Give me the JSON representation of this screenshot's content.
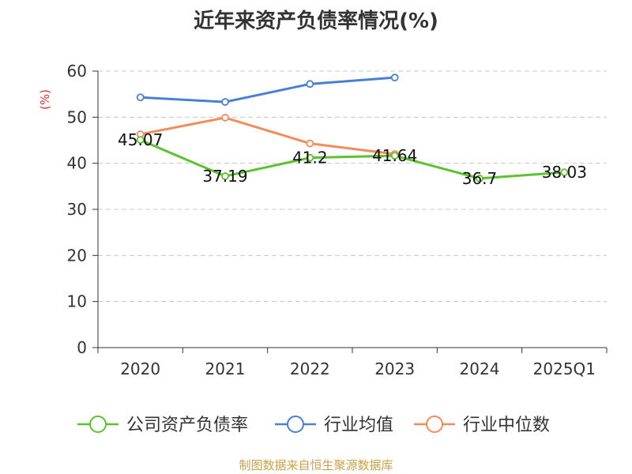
{
  "chart_data": {
    "type": "line",
    "title": "近年来资产负债率情况(%)",
    "ylabel": "(%)",
    "xlabel": "",
    "categories": [
      "2020",
      "2021",
      "2022",
      "2023",
      "2024",
      "2025Q1"
    ],
    "ylim": [
      0,
      60
    ],
    "yticks": [
      0,
      10,
      20,
      30,
      40,
      50,
      60
    ],
    "grid": true,
    "legend_position": "bottom",
    "series": [
      {
        "name": "公司资产负债率",
        "color": "#5cc22e",
        "values": [
          45.07,
          37.19,
          41.2,
          41.64,
          36.7,
          38.03
        ],
        "data_labels": [
          "45.07",
          "37.19",
          "41.2",
          "41.64",
          "36.7",
          "38.03"
        ]
      },
      {
        "name": "行业均值",
        "color": "#4a7fd6",
        "values": [
          54.3,
          53.3,
          57.2,
          58.6,
          null,
          null
        ]
      },
      {
        "name": "行业中位数",
        "color": "#f58b5a",
        "values": [
          46.3,
          49.9,
          44.3,
          42.0,
          null,
          null
        ]
      }
    ]
  },
  "footer": {
    "source": "制图数据来自恒生聚源数据库"
  }
}
